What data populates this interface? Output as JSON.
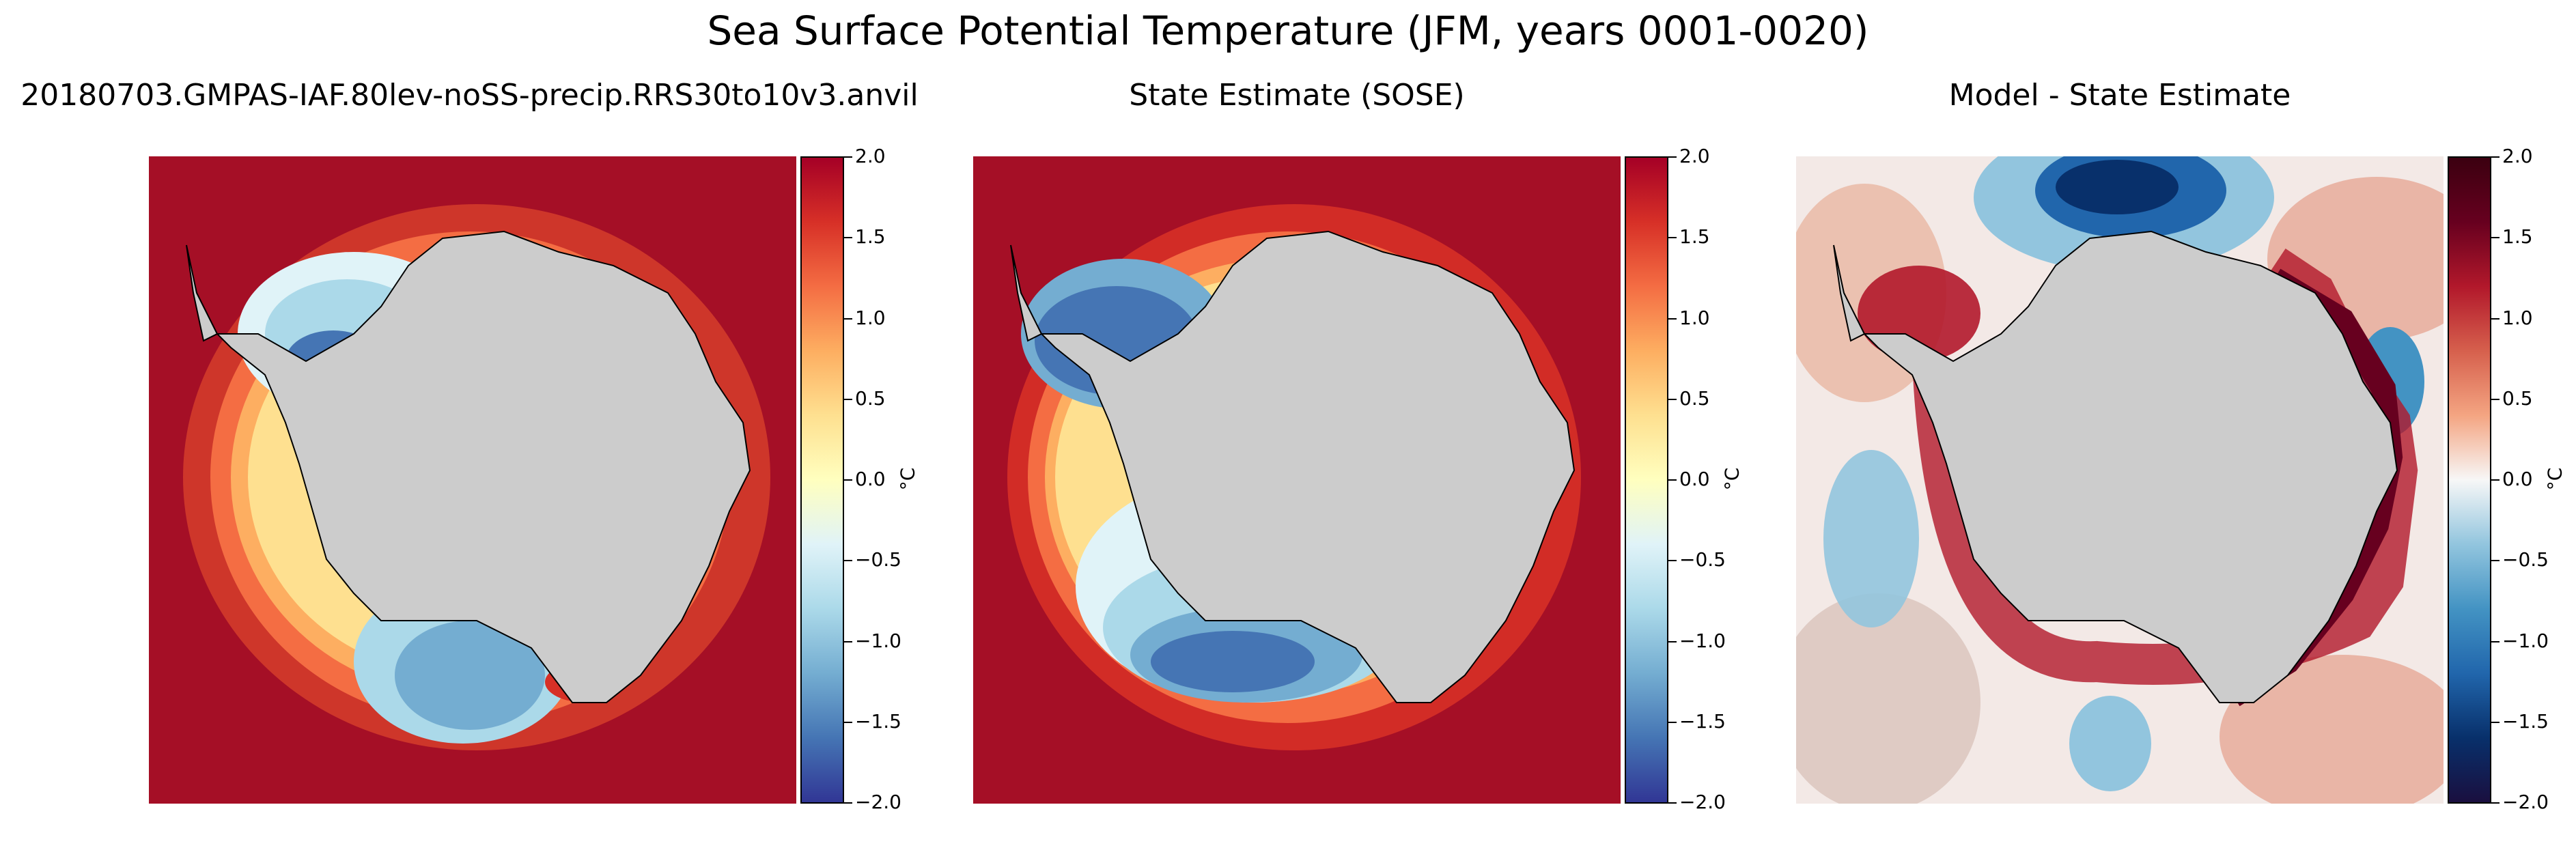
{
  "title": "Sea Surface Potential Temperature (JFM, years 0001-0020)",
  "panels": [
    {
      "title": "20180703.GMPAS-IAF.80lev-noSS-precip.RRS30to10v3.anvil",
      "colormap": "RdYlBu_r",
      "background": "#a50f26"
    },
    {
      "title": "State Estimate (SOSE)",
      "colormap": "RdYlBu_r",
      "background": "#a50f26"
    },
    {
      "title": "Model - State Estimate",
      "colormap": "RdBu_r",
      "background": "#f3e9e6"
    }
  ],
  "colorbar": {
    "ticks": [
      "2.0",
      "1.5",
      "1.0",
      "0.5",
      "0.0",
      "−0.5",
      "−1.0",
      "−1.5",
      "−2.0"
    ],
    "unit": "°C",
    "range": [
      -2.0,
      2.0
    ]
  },
  "colors": {
    "land": "#cccccc",
    "rdylbu": [
      "#313695",
      "#4575b4",
      "#74add1",
      "#abd9e9",
      "#e0f3f8",
      "#ffffbf",
      "#fee090",
      "#fdae61",
      "#f46d43",
      "#d73027",
      "#a50026"
    ],
    "rdbu": [
      "#1a0f3f",
      "#08306b",
      "#2166ac",
      "#4393c3",
      "#92c5de",
      "#f7f7f7",
      "#f4a582",
      "#d6604d",
      "#b2182b",
      "#67001f",
      "#3b0010"
    ]
  }
}
